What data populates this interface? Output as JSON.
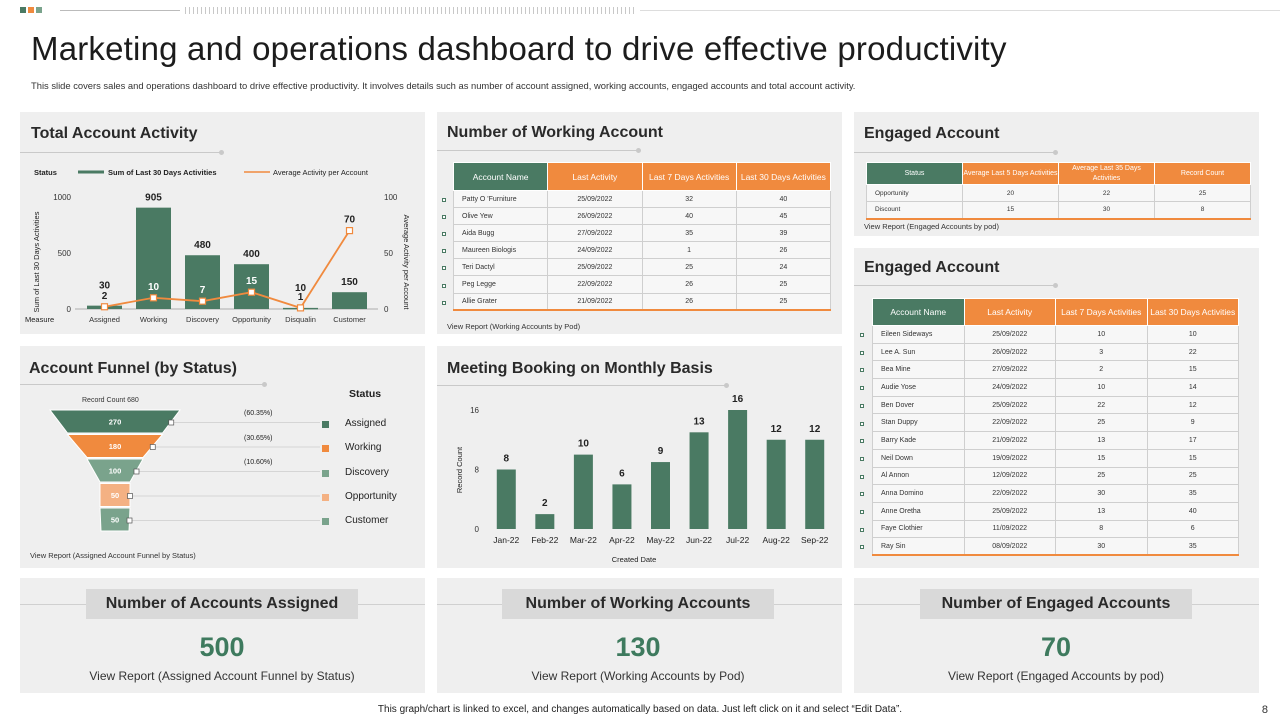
{
  "page": {
    "title": "Marketing and operations dashboard to drive effective productivity",
    "subtitle": "This slide covers sales and operations dashboard to drive effective productivity. It involves details such as number of account assigned, working accounts, engaged accounts and total account activity.",
    "footer": "This graph/chart is linked to excel, and changes automatically based on data. Just left click on it and select “Edit Data”.",
    "page_number": "8"
  },
  "colors": {
    "green": "#4a7a63",
    "orange": "#f08a3e",
    "light_orange": "#f4b183",
    "light_green": "#7aa38c",
    "panel": "#efefef"
  },
  "total_activity": {
    "title": "Total Account Activity",
    "legend_status": "Status",
    "legend_bar": "Sum of Last 30 Days Activities",
    "legend_line": "Average Activity per Account",
    "ylabel_left": "Sum of Last 30 Days Activities",
    "ylabel_right": "Average Activity per Account",
    "x_axis_name": "Measure"
  },
  "chart_data": [
    {
      "type": "bar+line",
      "title": "Total Account Activity",
      "categories": [
        "Assigned",
        "Working",
        "Discovery",
        "Opportunity",
        "Disqualin",
        "Customer"
      ],
      "series": [
        {
          "name": "Sum of Last 30 Days Activities",
          "values": [
            30,
            905,
            480,
            400,
            10,
            150
          ],
          "axis": "left"
        },
        {
          "name": "Average Activity per Account",
          "values": [
            2,
            10,
            7,
            15,
            1,
            70
          ],
          "axis": "right"
        }
      ],
      "left_ylim": [
        0,
        1000
      ],
      "left_ticks": [
        "0",
        "500",
        "1000"
      ],
      "right_ylim": [
        0,
        100
      ],
      "right_ticks": [
        "0",
        "50",
        "100"
      ],
      "ylabel": "Sum of Last 30 Days Activities",
      "y2label": "Average Activity per Account"
    },
    {
      "type": "funnel",
      "title": "Account Funnel (by Status)",
      "header": "Record Count 680",
      "stages": [
        {
          "name": "Assigned",
          "value": 270,
          "pct": "(60.35%)"
        },
        {
          "name": "Working",
          "value": 180,
          "pct": "(30.65%)"
        },
        {
          "name": "Discovery",
          "value": 100,
          "pct": "(10.60%)"
        },
        {
          "name": "Opportunity",
          "value": 50,
          "pct": ""
        },
        {
          "name": "Customer",
          "value": 50,
          "pct": ""
        }
      ]
    },
    {
      "type": "bar",
      "title": "Meeting Booking on Monthly Basis",
      "categories": [
        "Jan-22",
        "Feb-22",
        "Mar-22",
        "Apr-22",
        "May-22",
        "Jun-22",
        "Jul-22",
        "Aug-22",
        "Sep-22"
      ],
      "values": [
        8,
        2,
        10,
        6,
        9,
        13,
        16,
        12,
        12
      ],
      "xlabel": "Created Date",
      "ylabel": "Record Count",
      "ylim": [
        0,
        16
      ],
      "y_ticks": [
        "0",
        "8",
        "16"
      ]
    }
  ],
  "funnel": {
    "title": "Account Funnel (by Status)",
    "header": "Record Count 680",
    "legend_title": "Status",
    "link": "View Report (Assigned Account Funnel by Status)",
    "stage_values": [
      "270",
      "180",
      "100",
      "50",
      "50"
    ],
    "stage_pcts": [
      "(60.35%)",
      "(30.65%)",
      "(10.60%)"
    ],
    "legend": [
      "Assigned",
      "Working",
      "Discovery",
      "Opportunity",
      "Customer"
    ]
  },
  "meeting": {
    "title": "Meeting Booking on Monthly Basis",
    "xlabel": "Created Date",
    "ylabel": "Record Count"
  },
  "working_account": {
    "title": "Number of Working Account",
    "headers": [
      "Account Name",
      "Last Activity",
      "Last 7 Days Activities",
      "Last 30 Days Activities"
    ],
    "rows": [
      [
        "Patty O 'Furniture",
        "25/09/2022",
        "32",
        "40"
      ],
      [
        "Olive Yew",
        "26/09/2022",
        "40",
        "45"
      ],
      [
        "Aida Bugg",
        "27/09/2022",
        "35",
        "39"
      ],
      [
        "Maureen Biologis",
        "24/09/2022",
        "1",
        "26"
      ],
      [
        "Teri Dactyl",
        "25/09/2022",
        "25",
        "24"
      ],
      [
        "Peg Legge",
        "22/09/2022",
        "26",
        "25"
      ],
      [
        "Allie Grater",
        "21/09/2022",
        "26",
        "25"
      ]
    ],
    "link": "View Report (Working Accounts by Pod)"
  },
  "engaged_top": {
    "title": "Engaged Account",
    "headers": [
      "Status",
      "Average Last 5 Days Activities",
      "Average Last 35 Days Activities",
      "Record Count"
    ],
    "rows": [
      [
        "Opportunity",
        "20",
        "22",
        "25"
      ],
      [
        "Discount",
        "15",
        "30",
        "8"
      ]
    ],
    "link": "View Report (Engaged Accounts by pod)"
  },
  "engaged_list": {
    "title": "Engaged Account",
    "headers": [
      "Account Name",
      "Last Activity",
      "Last 7 Days Activities",
      "Last 30 Days Activities"
    ],
    "rows": [
      [
        "Eileen Sideways",
        "25/09/2022",
        "10",
        "10"
      ],
      [
        "Lee A. Sun",
        "26/09/2022",
        "3",
        "22"
      ],
      [
        "Bea Mine",
        "27/09/2022",
        "2",
        "15"
      ],
      [
        "Audie Yose",
        "24/09/2022",
        "10",
        "14"
      ],
      [
        "Ben Dover",
        "25/09/2022",
        "22",
        "12"
      ],
      [
        "Stan Duppy",
        "22/09/2022",
        "25",
        "9"
      ],
      [
        "Barry Kade",
        "21/09/2022",
        "13",
        "17"
      ],
      [
        "Neil Down",
        "19/09/2022",
        "15",
        "15"
      ],
      [
        "Al Annon",
        "12/09/2022",
        "25",
        "25"
      ],
      [
        "Anna Domino",
        "22/09/2022",
        "30",
        "35"
      ],
      [
        "Anne Oretha",
        "25/09/2022",
        "13",
        "40"
      ],
      [
        "Faye Clothier",
        "11/09/2022",
        "8",
        "6"
      ],
      [
        "Ray Sin",
        "08/09/2022",
        "30",
        "35"
      ]
    ]
  },
  "kpis": [
    {
      "label": "Number of Accounts Assigned",
      "value": "500",
      "link": "View Report (Assigned Account Funnel by Status)"
    },
    {
      "label": "Number of Working Accounts",
      "value": "130",
      "link": "View Report (Working Accounts by Pod)"
    },
    {
      "label": "Number of Engaged Accounts",
      "value": "70",
      "link": "View Report (Engaged Accounts by pod)"
    }
  ]
}
